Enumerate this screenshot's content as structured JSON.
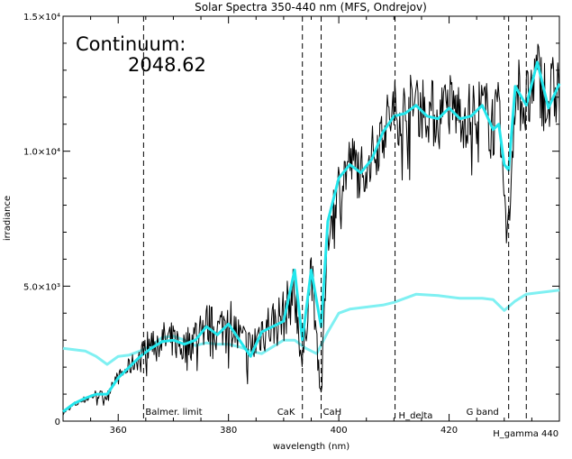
{
  "chart_data": {
    "type": "line",
    "title": "Solar Spectra 350-440 nm (MFS, Ondrejov)",
    "xlabel": "wavelength (nm)",
    "ylabel": "irradiance",
    "xlim": [
      350,
      440
    ],
    "ylim": [
      0,
      15000
    ],
    "grid": false,
    "x_ticks": [
      {
        "value": 360,
        "label": "360"
      },
      {
        "value": 380,
        "label": "380"
      },
      {
        "value": 400,
        "label": "400"
      },
      {
        "value": 420,
        "label": "420"
      }
    ],
    "y_ticks": [
      {
        "value": 0,
        "label": "0"
      },
      {
        "value": 5000,
        "label": "5.0×10³"
      },
      {
        "value": 10000,
        "label": "1.0×10⁴"
      },
      {
        "value": 15000,
        "label": "1.5×10⁴"
      }
    ],
    "annotation": {
      "label": "Continuum:",
      "value": "2048.62"
    },
    "markers": [
      {
        "x": 364.6,
        "label": "Balmer. limit"
      },
      {
        "x": 393.4,
        "label": "CaK"
      },
      {
        "x": 396.8,
        "label": "CaH"
      },
      {
        "x": 410.2,
        "label": "H_delta"
      },
      {
        "x": 430.8,
        "label": "G band"
      },
      {
        "x": 434.0,
        "label": "H_gamma 440"
      }
    ],
    "series": [
      {
        "color": "#000000",
        "x": [
          350,
          352,
          354,
          356,
          358,
          359,
          360,
          362,
          364,
          365,
          366,
          368,
          370,
          372,
          374,
          376,
          378,
          380,
          382,
          384,
          386,
          388,
          390,
          392,
          393.4,
          395,
          396.8,
          398,
          400,
          402,
          404,
          406,
          408,
          410,
          412,
          414,
          416,
          418,
          420,
          422,
          424,
          426,
          428,
          429,
          430,
          430.8,
          432,
          434,
          436,
          438,
          440
        ],
        "y": [
          300,
          600,
          800,
          1000,
          900,
          1500,
          1600,
          2000,
          2400,
          2700,
          2900,
          3000,
          3000,
          2700,
          3200,
          3600,
          3300,
          3900,
          3000,
          2600,
          3400,
          3600,
          3900,
          4900,
          2000,
          5800,
          900,
          7000,
          8700,
          9600,
          9300,
          9800,
          10800,
          11500,
          11400,
          11800,
          11600,
          11200,
          11700,
          11400,
          11300,
          11600,
          11000,
          11300,
          8200,
          7000,
          12500,
          11600,
          12800,
          11800,
          12500
        ],
        "noise": [
          80,
          120,
          150,
          180,
          200,
          220,
          250,
          350,
          450,
          600,
          650,
          700,
          700,
          750,
          800,
          850,
          850,
          900,
          900,
          900,
          950,
          1000,
          1000,
          1000,
          600,
          1000,
          500,
          1000,
          1100,
          1100,
          1150,
          1150,
          1200,
          1200,
          1300,
          1300,
          1300,
          1300,
          1300,
          1300,
          1300,
          1300,
          1300,
          1300,
          1000,
          800,
          1400,
          1500,
          1500,
          1500,
          1500
        ]
      },
      {
        "color": "#22e6ec",
        "x": [
          350,
          352,
          354,
          356,
          358,
          360,
          362,
          364,
          366,
          368,
          370,
          372,
          374,
          376,
          378,
          380,
          382,
          384,
          386,
          388,
          390,
          392,
          393.4,
          395,
          396.8,
          398,
          400,
          402,
          404,
          406,
          408,
          410,
          412,
          414,
          416,
          418,
          420,
          422,
          424,
          426,
          428,
          429,
          430,
          430.8,
          432,
          434,
          436,
          438,
          440
        ],
        "y": [
          350,
          650,
          850,
          1000,
          1000,
          1600,
          2000,
          2400,
          2700,
          2950,
          3000,
          2850,
          3000,
          3500,
          3200,
          3600,
          3000,
          2400,
          3300,
          3500,
          3700,
          5600,
          3000,
          5600,
          3500,
          7400,
          9000,
          9500,
          9200,
          9700,
          10700,
          11300,
          11400,
          11700,
          11300,
          11200,
          11600,
          11200,
          11300,
          11700,
          10800,
          11000,
          9500,
          9300,
          12400,
          11700,
          13300,
          11600,
          12500
        ],
        "width": 3
      },
      {
        "color": "#7ff0f2",
        "x": [
          350,
          352,
          354,
          356,
          358,
          360,
          362,
          364,
          366,
          368,
          370,
          372,
          374,
          376,
          378,
          380,
          382,
          384,
          386,
          388,
          390,
          392,
          394,
          396,
          398,
          400,
          402,
          404,
          406,
          408,
          410,
          414,
          418,
          422,
          426,
          428,
          430,
          432,
          434,
          436,
          438,
          440
        ],
        "y": [
          2700,
          2650,
          2600,
          2400,
          2100,
          2400,
          2450,
          2600,
          2800,
          3100,
          3150,
          3000,
          2800,
          2900,
          2850,
          2850,
          2750,
          2600,
          2500,
          2750,
          3000,
          3000,
          2700,
          2500,
          3300,
          4000,
          4150,
          4200,
          4250,
          4300,
          4400,
          4700,
          4650,
          4550,
          4550,
          4500,
          4100,
          4450,
          4700,
          4750,
          4800,
          4850
        ],
        "width": 3
      }
    ]
  }
}
